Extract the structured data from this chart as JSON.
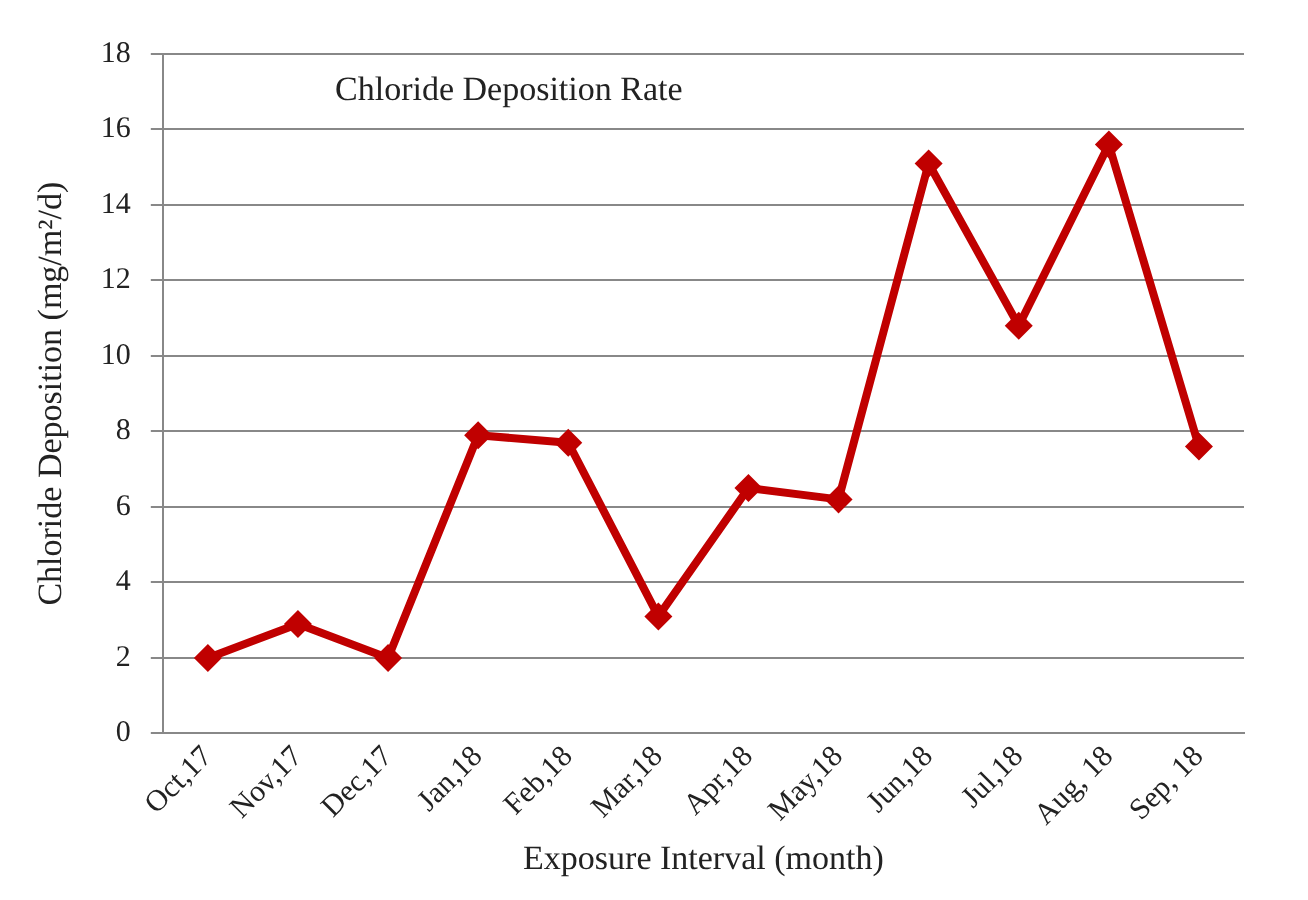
{
  "chart_data": {
    "type": "line",
    "title": "Chloride Deposition Rate",
    "xlabel": "Exposure Interval (month)",
    "ylabel": "Chloride Deposition (mg/m²/d)",
    "categories": [
      "Oct,17",
      "Nov,17",
      "Dec,17",
      "Jan,18",
      "Feb,18",
      "Mar,18",
      "Apr,18",
      "May,18",
      "Jun,18",
      "Jul,18",
      "Aug, 18",
      "Sep, 18"
    ],
    "series": [
      {
        "color": "#c00000",
        "values": [
          2.0,
          2.9,
          2.0,
          7.9,
          7.7,
          3.1,
          6.5,
          6.2,
          15.1,
          10.8,
          15.6,
          7.6
        ]
      }
    ],
    "ylim": [
      0,
      18
    ],
    "yticks": [
      0,
      2,
      4,
      6,
      8,
      10,
      12,
      14,
      16,
      18
    ],
    "grid": "y",
    "legend": false,
    "marker": "diamond",
    "line_style": "solid"
  }
}
